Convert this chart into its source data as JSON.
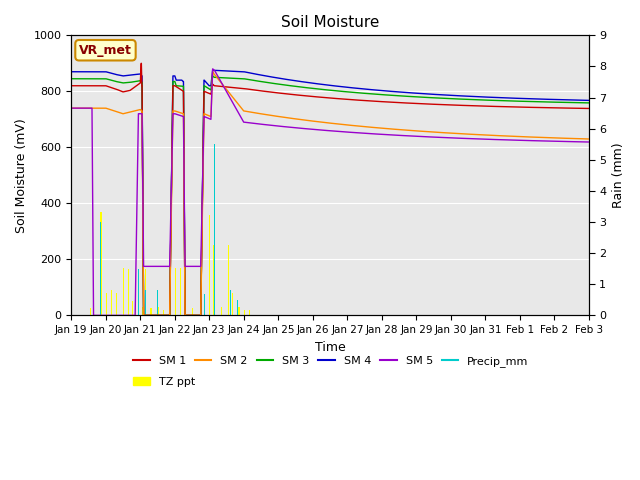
{
  "title": "Soil Moisture",
  "ylabel_left": "Soil Moisture (mV)",
  "ylabel_right": "Rain (mm)",
  "xlabel": "Time",
  "ylim_left": [
    0,
    1000
  ],
  "ylim_right": [
    0,
    9.0
  ],
  "bg_color": "#e8e8e8",
  "grid_color": "white",
  "sm1_color": "#cc0000",
  "sm2_color": "#ff8c00",
  "sm3_color": "#00aa00",
  "sm4_color": "#0000cc",
  "sm5_color": "#9900cc",
  "precip_color": "#00cccc",
  "tzppt_color": "#ffff00",
  "vr_box_facecolor": "#ffffcc",
  "vr_box_edgecolor": "#cc8800",
  "legend_labels_row1": [
    "SM 1",
    "SM 2",
    "SM 3",
    "SM 4",
    "SM 5",
    "Precip_mm"
  ],
  "legend_labels_row2": [
    "TZ ppt"
  ],
  "tick_labels": [
    "Jan 19",
    "Jan 20",
    "Jan 21",
    "Jan 22",
    "Jan 23",
    "Jan 24",
    "Jan 25",
    "Jan 26",
    "Jan 27",
    "Jan 28",
    "Jan 29",
    "Jan 30",
    "Jan 31",
    "Feb 1",
    "Feb 2",
    "Feb 3"
  ]
}
